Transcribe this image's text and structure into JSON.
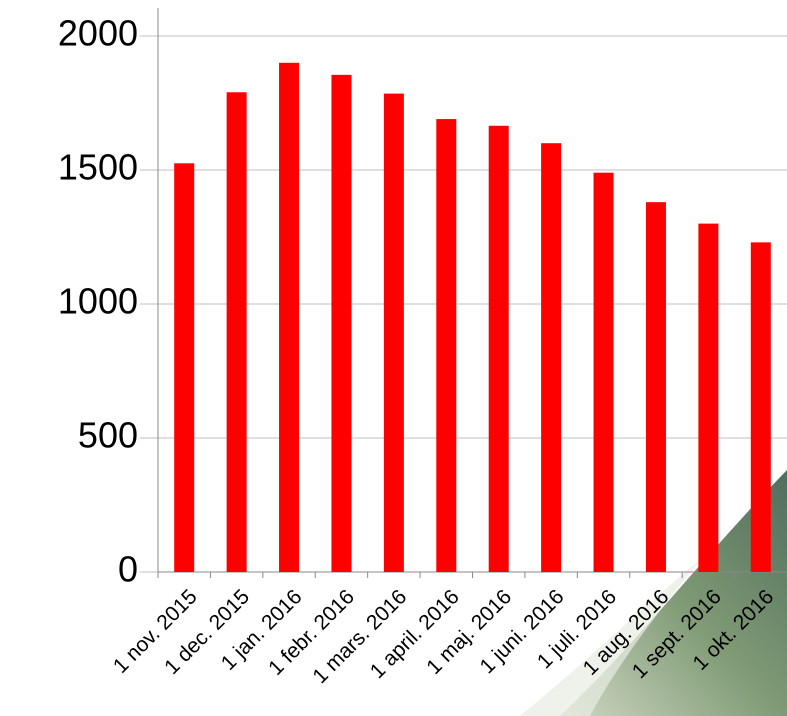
{
  "chart_data": {
    "type": "bar",
    "categories": [
      "1 nov. 2015",
      "1 dec. 2015",
      "1 jan. 2016",
      "1 febr. 2016",
      "1 mars. 2016",
      "1 april. 2016",
      "1 maj. 2016",
      "1 juni. 2016",
      "1 juli. 2016",
      "1 aug. 2016",
      "1 sept. 2016",
      "1 okt. 2016"
    ],
    "values": [
      1525,
      1790,
      1900,
      1855,
      1785,
      1690,
      1665,
      1600,
      1490,
      1380,
      1300,
      1230
    ],
    "color": "#ff0000",
    "ylim": [
      0,
      2000
    ],
    "yticks": [
      0,
      500,
      1000,
      1500,
      2000
    ],
    "grid": true
  }
}
